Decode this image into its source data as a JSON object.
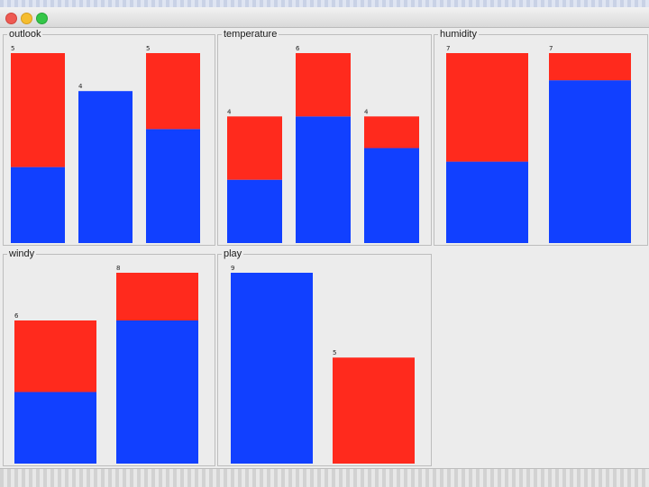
{
  "window": {
    "controls": [
      "close-button",
      "minimize-button",
      "maximize-button"
    ]
  },
  "colors": {
    "class_a": "#1140ff",
    "class_b": "#ff2a1d"
  },
  "chart_data": [
    {
      "type": "bar",
      "stacked": true,
      "title": "outlook",
      "categories": [
        "",
        "",
        ""
      ],
      "totals": [
        5,
        4,
        5
      ],
      "series": [
        {
          "color": "#1140ff",
          "values": [
            2,
            4,
            3
          ]
        },
        {
          "color": "#ff2a1d",
          "values": [
            3,
            0,
            2
          ]
        }
      ],
      "ylim": [
        0,
        5
      ],
      "labels": [
        "5",
        "4",
        "5"
      ]
    },
    {
      "type": "bar",
      "stacked": true,
      "title": "temperature",
      "categories": [
        "",
        "",
        ""
      ],
      "totals": [
        4,
        6,
        4
      ],
      "series": [
        {
          "color": "#1140ff",
          "values": [
            2,
            4,
            3
          ]
        },
        {
          "color": "#ff2a1d",
          "values": [
            2,
            2,
            1
          ]
        }
      ],
      "ylim": [
        0,
        6
      ],
      "labels": [
        "4",
        "6",
        "4"
      ]
    },
    {
      "type": "bar",
      "stacked": true,
      "title": "humidity",
      "categories": [
        "",
        ""
      ],
      "totals": [
        7,
        7
      ],
      "series": [
        {
          "color": "#1140ff",
          "values": [
            3,
            6
          ]
        },
        {
          "color": "#ff2a1d",
          "values": [
            4,
            1
          ]
        }
      ],
      "ylim": [
        0,
        7
      ],
      "labels": [
        "7",
        "7"
      ]
    },
    {
      "type": "bar",
      "stacked": true,
      "title": "windy",
      "categories": [
        "",
        ""
      ],
      "totals": [
        6,
        8
      ],
      "series": [
        {
          "color": "#1140ff",
          "values": [
            3,
            6
          ]
        },
        {
          "color": "#ff2a1d",
          "values": [
            3,
            2
          ]
        }
      ],
      "ylim": [
        0,
        8
      ],
      "labels": [
        "6",
        "8"
      ]
    },
    {
      "type": "bar",
      "stacked": true,
      "title": "play",
      "categories": [
        "",
        ""
      ],
      "totals": [
        9,
        5
      ],
      "series": [
        {
          "color": "#1140ff",
          "values": [
            9,
            0
          ]
        },
        {
          "color": "#ff2a1d",
          "values": [
            0,
            5
          ]
        }
      ],
      "ylim": [
        0,
        9
      ],
      "labels": [
        "9",
        "5"
      ]
    }
  ]
}
